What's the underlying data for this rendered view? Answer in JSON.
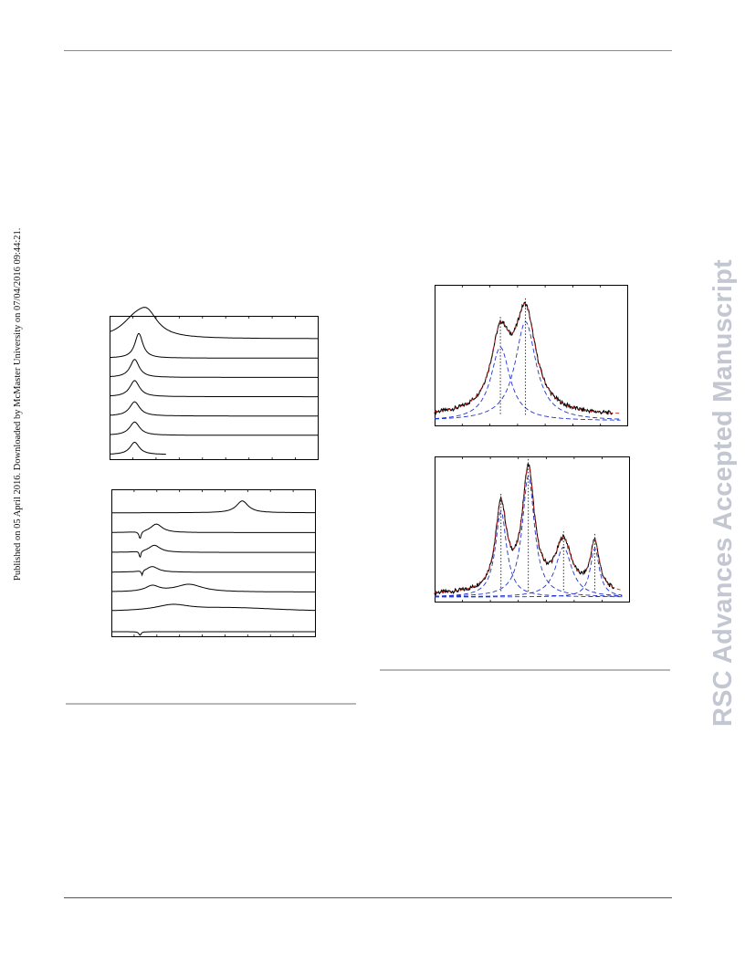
{
  "side_note": "Published on 05 April 2016. Downloaded by McMaster University on 07/04/2016 09:44:21.",
  "watermark": "RSC Advances Accepted Manuscript",
  "chart_data": [
    {
      "type": "line",
      "title": "",
      "xlabel": "",
      "ylabel": "",
      "stacked": true,
      "x_domain": [
        0,
        100
      ],
      "series": [
        {
          "offset": 6,
          "peaks": [
            [
              12,
              8,
              3.4
            ],
            [
              18,
              6,
              4.3
            ]
          ]
        },
        {
          "offset": 5,
          "peaks": [
            [
              14,
              2.3,
              5.2
            ]
          ]
        },
        {
          "offset": 4,
          "peaks": [
            [
              12,
              2.6,
              3.8
            ]
          ]
        },
        {
          "offset": 3,
          "peaks": [
            [
              12,
              2.8,
              3.4
            ]
          ]
        },
        {
          "offset": 2,
          "peaks": [
            [
              12,
              2.9,
              3.0
            ]
          ]
        },
        {
          "offset": 1,
          "peaks": [
            [
              12,
              2.9,
              2.8
            ]
          ]
        },
        {
          "offset": 0,
          "peaks": [
            [
              12,
              2.7,
              2.6
            ]
          ],
          "x_end": 27
        }
      ]
    },
    {
      "type": "line",
      "title": "",
      "xlabel": "",
      "ylabel": "",
      "stacked": true,
      "x_domain": [
        0,
        100
      ],
      "series": [
        {
          "offset": 6,
          "peaks": [
            [
              64,
              3.5,
              2.5
            ]
          ]
        },
        {
          "offset": 5,
          "peaks": [
            [
              14,
              0.6,
              -1.6
            ],
            [
              22,
              3.5,
              1.8
            ]
          ]
        },
        {
          "offset": 4,
          "peaks": [
            [
              14,
              0.4,
              -1.5
            ],
            [
              21,
              3.5,
              1.5
            ]
          ]
        },
        {
          "offset": 3,
          "peaks": [
            [
              15,
              0.4,
              -1.0
            ],
            [
              20,
              3.5,
              1.2
            ]
          ]
        },
        {
          "offset": 2,
          "peaks": [
            [
              20,
              4,
              1.2
            ],
            [
              38,
              8,
              1.6
            ]
          ]
        },
        {
          "offset": 1,
          "peaks": [
            [
              30,
              10,
              1.2
            ],
            [
              60,
              30,
              0.8
            ]
          ]
        },
        {
          "offset": 0,
          "peaks": [
            [
              14,
              0.6,
              -0.8
            ]
          ]
        }
      ]
    },
    {
      "type": "line",
      "title": "",
      "xlabel": "",
      "ylabel": "",
      "x_domain": [
        0,
        100
      ],
      "y_domain": [
        0,
        100
      ],
      "series": [
        {
          "style": "measured",
          "color": "#000000",
          "peaks": [
            [
              34,
              6,
              58
            ],
            [
              47,
              6.5,
              78
            ]
          ],
          "baseline": 4
        },
        {
          "style": "fit-total",
          "color": "#cc2222",
          "peaks": [
            [
              34,
              6,
              58
            ],
            [
              47,
              6.5,
              78
            ]
          ],
          "baseline": 4
        },
        {
          "style": "component",
          "color": "#2233cc",
          "peaks": [
            [
              34,
              6,
              58
            ]
          ]
        },
        {
          "style": "component",
          "color": "#2233cc",
          "peaks": [
            [
              47,
              6.5,
              78
            ]
          ]
        }
      ],
      "marker_x": [
        34,
        47
      ]
    },
    {
      "type": "line",
      "title": "",
      "xlabel": "",
      "ylabel": "",
      "x_domain": [
        0,
        100
      ],
      "y_domain": [
        0,
        100
      ],
      "series": [
        {
          "style": "measured",
          "color": "#000000",
          "peaks": [
            [
              34,
              3.5,
              65
            ],
            [
              48,
              3.8,
              92
            ],
            [
              66,
              5,
              38
            ],
            [
              82,
              2.8,
              37
            ]
          ],
          "baseline": 2
        },
        {
          "style": "fit-total",
          "color": "#cc2222",
          "peaks": [
            [
              34,
              3.5,
              65
            ],
            [
              48,
              3.8,
              92
            ],
            [
              66,
              5,
              38
            ],
            [
              82,
              2.8,
              37
            ]
          ],
          "baseline": 2
        },
        {
          "style": "component",
          "color": "#2233cc",
          "peaks": [
            [
              34,
              3.5,
              65
            ]
          ]
        },
        {
          "style": "component",
          "color": "#2233cc",
          "peaks": [
            [
              48,
              3.8,
              92
            ]
          ]
        },
        {
          "style": "component",
          "color": "#2233cc",
          "peaks": [
            [
              66,
              5,
              38
            ]
          ]
        },
        {
          "style": "component",
          "color": "#2233cc",
          "peaks": [
            [
              82,
              2.8,
              37
            ]
          ]
        }
      ],
      "marker_x": [
        34,
        48,
        66,
        82
      ]
    }
  ]
}
